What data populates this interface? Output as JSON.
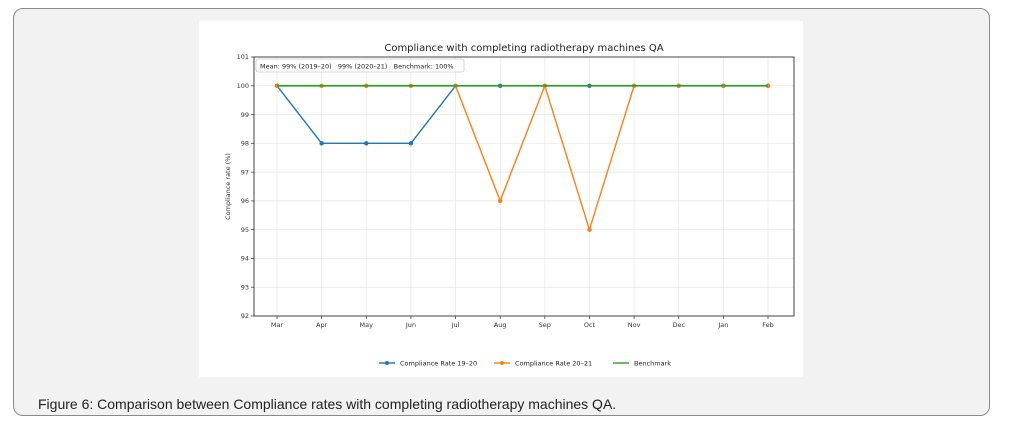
{
  "caption": "Figure 6: Comparison between Compliance rates with completing radiotherapy machines QA.",
  "chart_data": {
    "type": "line",
    "title": "Compliance with completing radiotherapy machines QA",
    "xlabel": "",
    "ylabel": "Compliance rate (%)",
    "categories": [
      "Mar",
      "Apr",
      "May",
      "Jun",
      "Jul",
      "Aug",
      "Sep",
      "Oct",
      "Nov",
      "Dec",
      "Jan",
      "Feb"
    ],
    "ylim": [
      92,
      101
    ],
    "yticks": [
      "92",
      "93",
      "94",
      "95",
      "96",
      "97",
      "98",
      "99",
      "100",
      "101"
    ],
    "grid": true,
    "annotation": "Mean: 99% (2019–20)   99% (2020–21)   Benchmark: 100%",
    "legend_position": "bottom-center",
    "series": [
      {
        "name": "Compliance Rate 19–20",
        "color": "#1f77b4",
        "marker": "circle",
        "values": [
          100,
          98,
          98,
          98,
          100,
          100,
          100,
          100,
          100,
          100,
          100,
          100
        ]
      },
      {
        "name": "Compliance Rate 20–21",
        "color": "#ff7f0e",
        "marker": "circle",
        "values": [
          100,
          100,
          100,
          100,
          100,
          96,
          100,
          95,
          100,
          100,
          100,
          100
        ]
      },
      {
        "name": "Benchmark",
        "color": "#2ca02c",
        "marker": "none",
        "values": [
          100,
          100,
          100,
          100,
          100,
          100,
          100,
          100,
          100,
          100,
          100,
          100
        ]
      }
    ]
  }
}
